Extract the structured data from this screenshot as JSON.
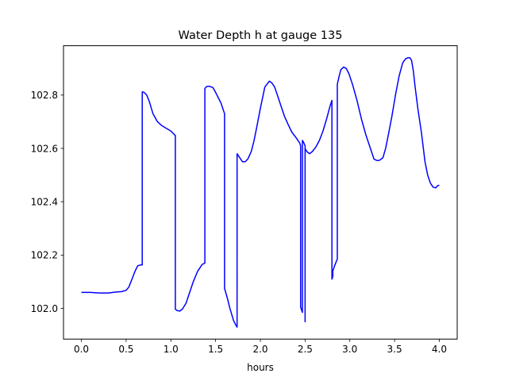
{
  "chart_data": {
    "type": "line",
    "title": "Water Depth h at gauge 135",
    "xlabel": "hours",
    "ylabel": "",
    "xlim": [
      -0.2,
      4.2
    ],
    "ylim": [
      101.885,
      102.985
    ],
    "xticks": [
      0.0,
      0.5,
      1.0,
      1.5,
      2.0,
      2.5,
      3.0,
      3.5,
      4.0
    ],
    "xtick_labels": [
      "0.0",
      "0.5",
      "1.0",
      "1.5",
      "2.0",
      "2.5",
      "3.0",
      "3.5",
      "4.0"
    ],
    "yticks": [
      102.0,
      102.2,
      102.4,
      102.6,
      102.8
    ],
    "ytick_labels": [
      "102.0",
      "102.2",
      "102.4",
      "102.6",
      "102.8"
    ],
    "grid": false,
    "legend": "none",
    "series": [
      {
        "color": "#0000ff",
        "x": [
          0.0,
          0.1,
          0.2,
          0.3,
          0.4,
          0.45,
          0.5,
          0.53,
          0.56,
          0.6,
          0.63,
          0.66,
          0.68,
          0.68,
          0.7,
          0.73,
          0.76,
          0.8,
          0.85,
          0.9,
          1.0,
          1.05,
          1.05,
          1.07,
          1.1,
          1.13,
          1.17,
          1.2,
          1.25,
          1.3,
          1.35,
          1.38,
          1.38,
          1.4,
          1.43,
          1.47,
          1.5,
          1.53,
          1.56,
          1.6,
          1.6,
          1.63,
          1.66,
          1.7,
          1.73,
          1.74,
          1.74,
          1.77,
          1.8,
          1.83,
          1.86,
          1.9,
          1.93,
          1.96,
          2.0,
          2.05,
          2.1,
          2.13,
          2.16,
          2.19,
          2.23,
          2.27,
          2.31,
          2.35,
          2.4,
          2.44,
          2.45,
          2.45,
          2.47,
          2.47,
          2.48,
          2.5,
          2.5,
          2.5,
          2.52,
          2.55,
          2.58,
          2.62,
          2.66,
          2.7,
          2.74,
          2.78,
          2.8,
          2.8,
          2.81,
          2.81,
          2.83,
          2.86,
          2.86,
          2.88,
          2.9,
          2.93,
          2.96,
          2.99,
          3.03,
          3.08,
          3.13,
          3.18,
          3.23,
          3.27,
          3.3,
          3.33,
          3.37,
          3.4,
          3.43,
          3.47,
          3.51,
          3.55,
          3.59,
          3.62,
          3.65,
          3.67,
          3.69,
          3.71,
          3.73,
          3.76,
          3.8,
          3.84,
          3.87,
          3.9,
          3.93,
          3.96,
          3.98,
          4.0
        ],
        "y": [
          102.06,
          102.06,
          102.058,
          102.058,
          102.062,
          102.063,
          102.068,
          102.08,
          102.105,
          102.14,
          102.16,
          102.163,
          102.163,
          102.812,
          102.81,
          102.8,
          102.775,
          102.73,
          102.7,
          102.685,
          102.665,
          102.648,
          101.997,
          101.992,
          101.99,
          101.998,
          102.02,
          102.05,
          102.1,
          102.14,
          102.165,
          102.17,
          102.825,
          102.832,
          102.833,
          102.828,
          102.81,
          102.79,
          102.77,
          102.73,
          102.075,
          102.04,
          102.0,
          101.955,
          101.935,
          101.93,
          102.58,
          102.565,
          102.55,
          102.55,
          102.56,
          102.59,
          102.63,
          102.68,
          102.75,
          102.83,
          102.852,
          102.845,
          102.83,
          102.8,
          102.76,
          102.72,
          102.69,
          102.662,
          102.64,
          102.62,
          102.61,
          102.005,
          101.985,
          102.63,
          102.625,
          102.61,
          101.95,
          102.6,
          102.588,
          102.58,
          102.588,
          102.605,
          102.63,
          102.665,
          102.71,
          102.76,
          102.78,
          102.11,
          102.12,
          102.14,
          102.16,
          102.185,
          102.84,
          102.87,
          102.895,
          102.905,
          102.9,
          102.88,
          102.84,
          102.78,
          102.71,
          102.65,
          102.6,
          102.56,
          102.555,
          102.555,
          102.565,
          102.6,
          102.65,
          102.72,
          102.8,
          102.87,
          102.92,
          102.935,
          102.94,
          102.94,
          102.93,
          102.89,
          102.83,
          102.75,
          102.66,
          102.55,
          102.5,
          102.47,
          102.455,
          102.452,
          102.46,
          102.462
        ]
      }
    ]
  }
}
